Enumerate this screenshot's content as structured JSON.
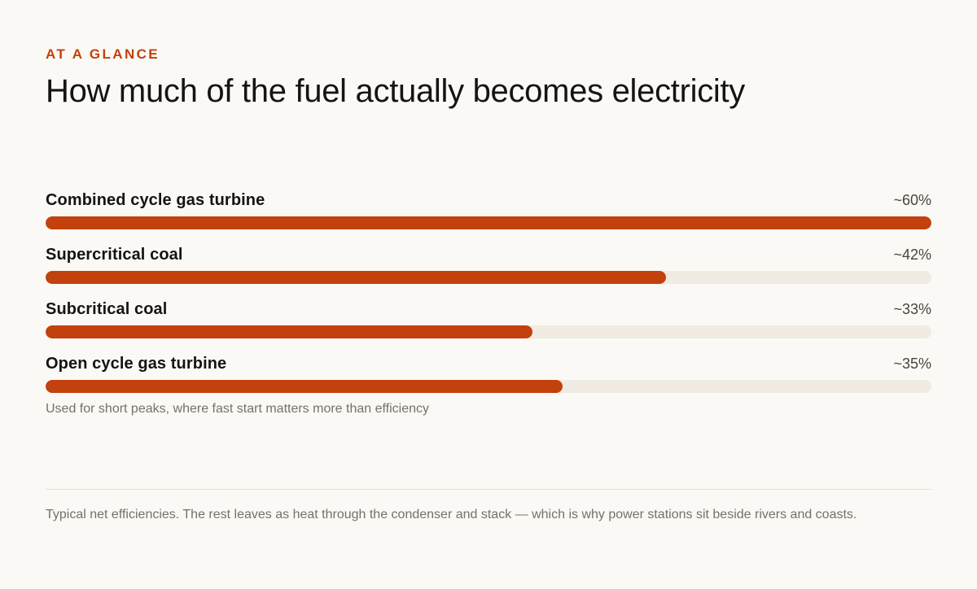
{
  "eyebrow": "AT A GLANCE",
  "title": "How much of the fuel actually becomes electricity",
  "chart_data": {
    "type": "bar",
    "orientation": "horizontal",
    "title": "How much of the fuel actually becomes electricity",
    "categories": [
      "Combined cycle gas turbine",
      "Supercritical coal",
      "Subcritical coal",
      "Open cycle gas turbine"
    ],
    "values": [
      60,
      42,
      33,
      35
    ],
    "value_labels": [
      "~60%",
      "~42%",
      "~33%",
      "~35%"
    ],
    "notes": [
      "",
      "",
      "",
      "Used for short peaks, where fast start matters more than efficiency"
    ],
    "xlim": [
      0,
      60
    ],
    "grid": false,
    "legend": "none",
    "colors": {
      "fill": "#c2410c",
      "track": "#f0ebe3"
    }
  },
  "footnote": "Typical net efficiencies. The rest leaves as heat through the condenser and stack — which is why power stations sit beside rivers and coasts."
}
